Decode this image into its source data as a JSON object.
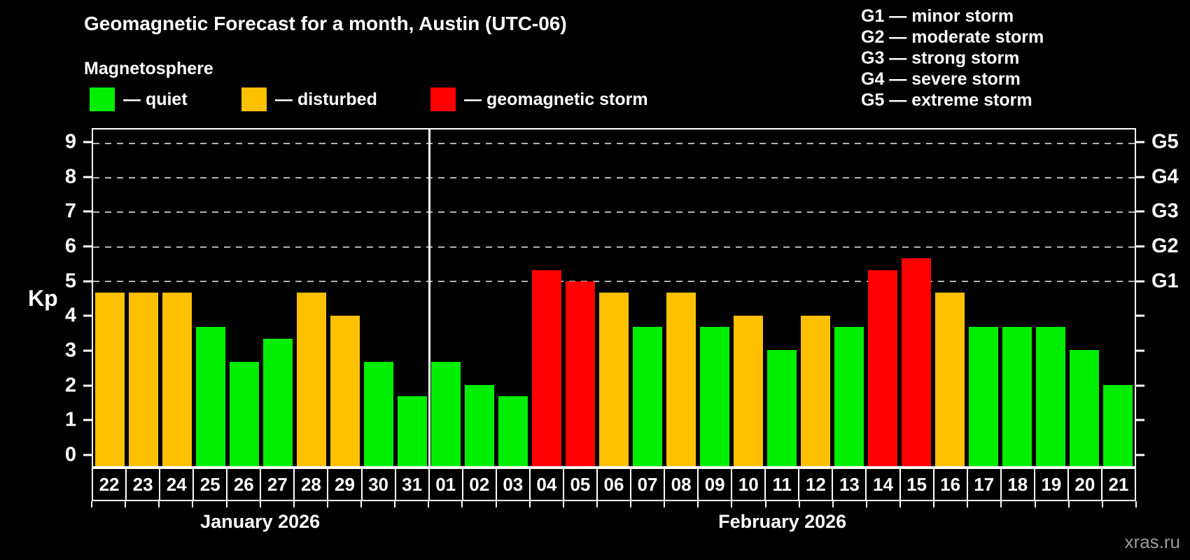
{
  "title": "Geomagnetic Forecast for a month, Austin (UTC-06)",
  "subtitle": "Magnetosphere",
  "watermark": "xras.ru",
  "palette": {
    "quiet": "#00ee00",
    "disturbed": "#ffc000",
    "storm": "#ff0000",
    "grid": "#b4b4b4",
    "axis": "#ffffff",
    "background": "#000000",
    "watermark_color": "#9a9a9a"
  },
  "legend": {
    "items": [
      {
        "status": "quiet",
        "label": "— quiet"
      },
      {
        "status": "disturbed",
        "label": "— disturbed"
      },
      {
        "status": "storm",
        "label": "— geomagnetic storm"
      }
    ]
  },
  "g_legend": [
    "G1 — minor storm",
    "G2 — moderate storm",
    "G3 — strong storm",
    "G4 — severe storm",
    "G5 — extreme storm"
  ],
  "axis": {
    "kp_label": "Kp",
    "y_ticks": [
      0,
      1,
      2,
      3,
      4,
      5,
      6,
      7,
      8,
      9
    ],
    "right_labels": {
      "5": "G1",
      "6": "G2",
      "7": "G3",
      "8": "G4",
      "9": "G5"
    }
  },
  "months": [
    {
      "label": "January 2026",
      "days": 10
    },
    {
      "label": "February 2026",
      "days": 21
    }
  ],
  "chart_data": {
    "type": "bar",
    "title": "Geomagnetic Forecast for a month, Austin (UTC-06)",
    "ylabel": "Kp",
    "ylim": [
      0,
      9
    ],
    "gridlines_at": [
      5,
      6,
      7,
      8,
      9
    ],
    "legend_position": "top",
    "days": [
      {
        "month": "January 2026",
        "date": "22",
        "kp": 4.67,
        "status": "disturbed"
      },
      {
        "month": "January 2026",
        "date": "23",
        "kp": 4.67,
        "status": "disturbed"
      },
      {
        "month": "January 2026",
        "date": "24",
        "kp": 4.67,
        "status": "disturbed"
      },
      {
        "month": "January 2026",
        "date": "25",
        "kp": 3.67,
        "status": "quiet"
      },
      {
        "month": "January 2026",
        "date": "26",
        "kp": 2.67,
        "status": "quiet"
      },
      {
        "month": "January 2026",
        "date": "27",
        "kp": 3.33,
        "status": "quiet"
      },
      {
        "month": "January 2026",
        "date": "28",
        "kp": 4.67,
        "status": "disturbed"
      },
      {
        "month": "January 2026",
        "date": "29",
        "kp": 4.0,
        "status": "disturbed"
      },
      {
        "month": "January 2026",
        "date": "30",
        "kp": 2.67,
        "status": "quiet"
      },
      {
        "month": "January 2026",
        "date": "31",
        "kp": 1.67,
        "status": "quiet"
      },
      {
        "month": "February 2026",
        "date": "01",
        "kp": 2.67,
        "status": "quiet"
      },
      {
        "month": "February 2026",
        "date": "02",
        "kp": 2.0,
        "status": "quiet"
      },
      {
        "month": "February 2026",
        "date": "03",
        "kp": 1.67,
        "status": "quiet"
      },
      {
        "month": "February 2026",
        "date": "04",
        "kp": 5.33,
        "status": "storm"
      },
      {
        "month": "February 2026",
        "date": "05",
        "kp": 5.0,
        "status": "storm"
      },
      {
        "month": "February 2026",
        "date": "06",
        "kp": 4.67,
        "status": "disturbed"
      },
      {
        "month": "February 2026",
        "date": "07",
        "kp": 3.67,
        "status": "quiet"
      },
      {
        "month": "February 2026",
        "date": "08",
        "kp": 4.67,
        "status": "disturbed"
      },
      {
        "month": "February 2026",
        "date": "09",
        "kp": 3.67,
        "status": "quiet"
      },
      {
        "month": "February 2026",
        "date": "10",
        "kp": 4.0,
        "status": "disturbed"
      },
      {
        "month": "February 2026",
        "date": "11",
        "kp": 3.0,
        "status": "quiet"
      },
      {
        "month": "February 2026",
        "date": "12",
        "kp": 4.0,
        "status": "disturbed"
      },
      {
        "month": "February 2026",
        "date": "13",
        "kp": 3.67,
        "status": "quiet"
      },
      {
        "month": "February 2026",
        "date": "14",
        "kp": 5.33,
        "status": "storm"
      },
      {
        "month": "February 2026",
        "date": "15",
        "kp": 5.67,
        "status": "storm"
      },
      {
        "month": "February 2026",
        "date": "16",
        "kp": 4.67,
        "status": "disturbed"
      },
      {
        "month": "February 2026",
        "date": "17",
        "kp": 3.67,
        "status": "quiet"
      },
      {
        "month": "February 2026",
        "date": "18",
        "kp": 3.67,
        "status": "quiet"
      },
      {
        "month": "February 2026",
        "date": "19",
        "kp": 3.67,
        "status": "quiet"
      },
      {
        "month": "February 2026",
        "date": "20",
        "kp": 3.0,
        "status": "quiet"
      },
      {
        "month": "February 2026",
        "date": "21",
        "kp": 2.0,
        "status": "quiet"
      }
    ]
  }
}
